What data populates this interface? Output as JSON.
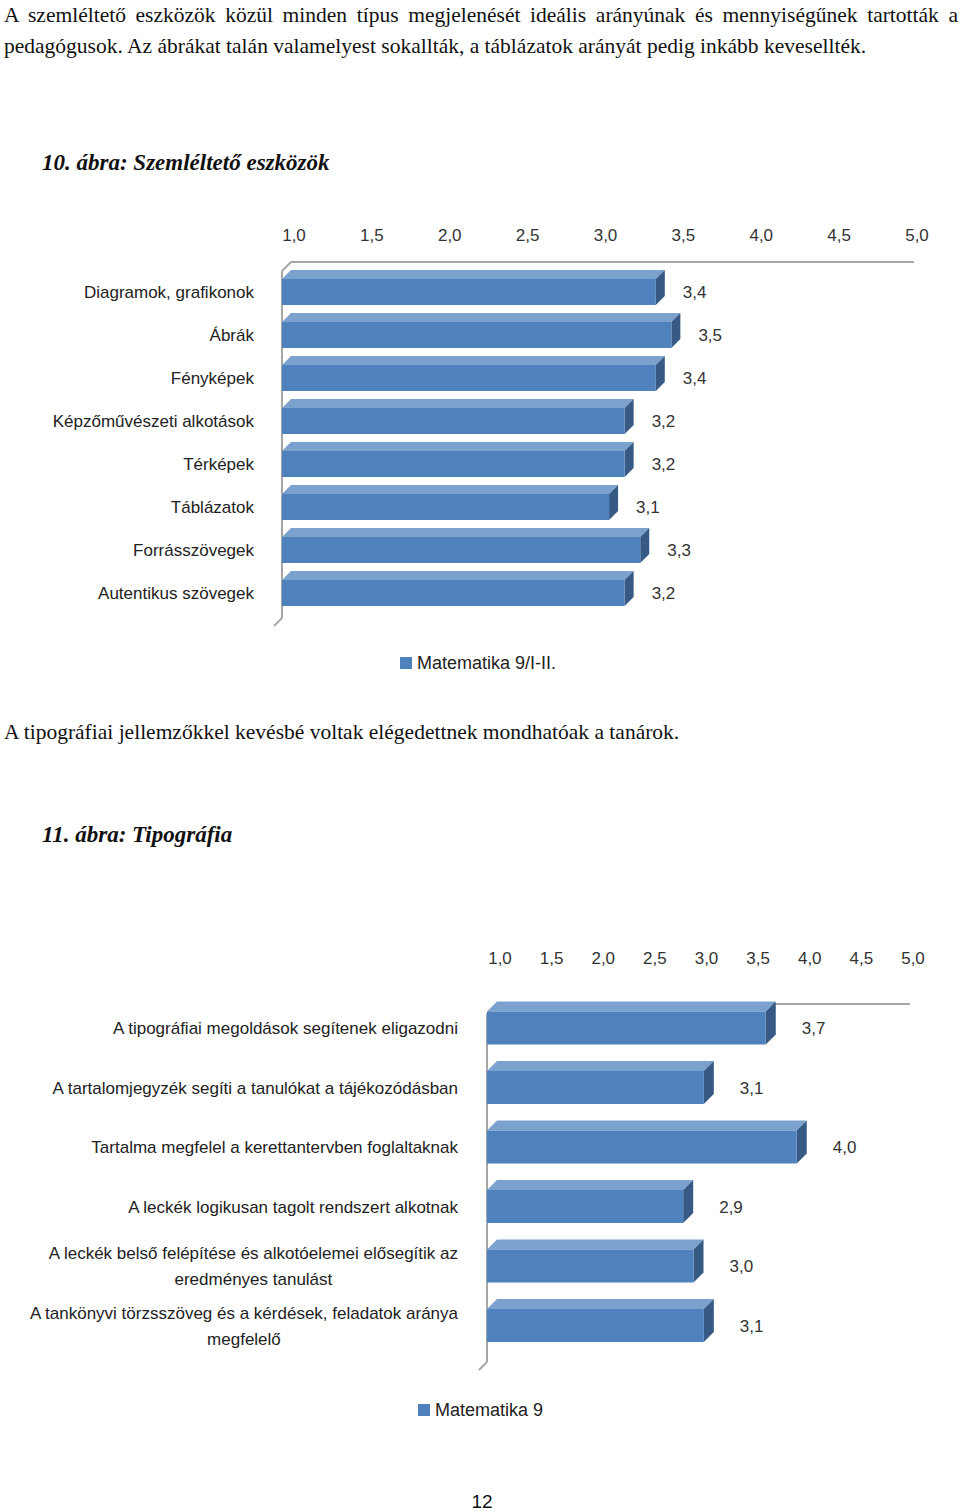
{
  "text": {
    "intro": "A szemléltető eszközök közül minden típus megjelenését ideális arányúnak és mennyiségűnek tartották a pedagógusok. Az ábrákat talán valamelyest sokallták, a táblázatok arányát pedig inkább kevesellték.",
    "between": "A tipográfiai jellemzőkkel kevésbé voltak elégedettnek mondhatóak a tanárok.",
    "page_number": "12"
  },
  "chart_data": [
    {
      "type": "bar",
      "orientation": "horizontal",
      "title": "10. ábra: Szemléltető eszközök",
      "categories": [
        "Diagramok, grafikonok",
        "Ábrák",
        "Fényképek",
        "Képzőművészeti alkotások",
        "Térképek",
        "Táblázatok",
        "Forrásszövegek",
        "Autentikus szövegek"
      ],
      "series": [
        {
          "name": "Matematika 9/I-II.",
          "color": "#4f81bd",
          "values": [
            3.4,
            3.5,
            3.4,
            3.2,
            3.2,
            3.1,
            3.3,
            3.2
          ],
          "value_labels": [
            "3,4",
            "3,5",
            "3,4",
            "3,2",
            "3,2",
            "3,1",
            "3,3",
            "3,2"
          ]
        }
      ],
      "xlim": [
        1,
        5
      ],
      "xticks": [
        {
          "value": 1,
          "label": "1,0"
        },
        {
          "value": 1.5,
          "label": "1,5"
        },
        {
          "value": 2,
          "label": "2,0"
        },
        {
          "value": 2.5,
          "label": "2,5"
        },
        {
          "value": 3,
          "label": "3,0"
        },
        {
          "value": 3.5,
          "label": "3,5"
        },
        {
          "value": 4,
          "label": "4,0"
        },
        {
          "value": 4.5,
          "label": "4,5"
        },
        {
          "value": 5,
          "label": "5,0"
        }
      ],
      "data_labels": true,
      "grid": false,
      "legend": "bottom"
    },
    {
      "type": "bar",
      "orientation": "horizontal",
      "title": "11. ábra: Tipográfia",
      "categories": [
        "A tipográfiai megoldások segítenek eligazodni",
        "A tartalomjegyzék segíti a tanulókat a tájékozódásban",
        "Tartalma megfelel a kerettantervben foglaltaknak",
        "A leckék logikusan tagolt rendszert alkotnak",
        "A leckék belső felépítése és alkotóelemei elősegítik az eredményes tanulást",
        "A tankönyvi törzsszöveg és a kérdések, feladatok aránya megfelelő"
      ],
      "series": [
        {
          "name": "Matematika 9",
          "color": "#4f81bd",
          "values": [
            3.7,
            3.1,
            4.0,
            2.9,
            3.0,
            3.1
          ],
          "value_labels": [
            "3,7",
            "3,1",
            "4,0",
            "2,9",
            "3,0",
            "3,1"
          ]
        }
      ],
      "xlim": [
        1,
        5
      ],
      "xticks": [
        {
          "value": 1,
          "label": "1,0"
        },
        {
          "value": 1.5,
          "label": "1,5"
        },
        {
          "value": 2,
          "label": "2,0"
        },
        {
          "value": 2.5,
          "label": "2,5"
        },
        {
          "value": 3,
          "label": "3,0"
        },
        {
          "value": 3.5,
          "label": "3,5"
        },
        {
          "value": 4,
          "label": "4,0"
        },
        {
          "value": 4.5,
          "label": "4,5"
        },
        {
          "value": 5,
          "label": "5,0"
        }
      ],
      "data_labels": true,
      "grid": false,
      "legend": "bottom"
    }
  ]
}
